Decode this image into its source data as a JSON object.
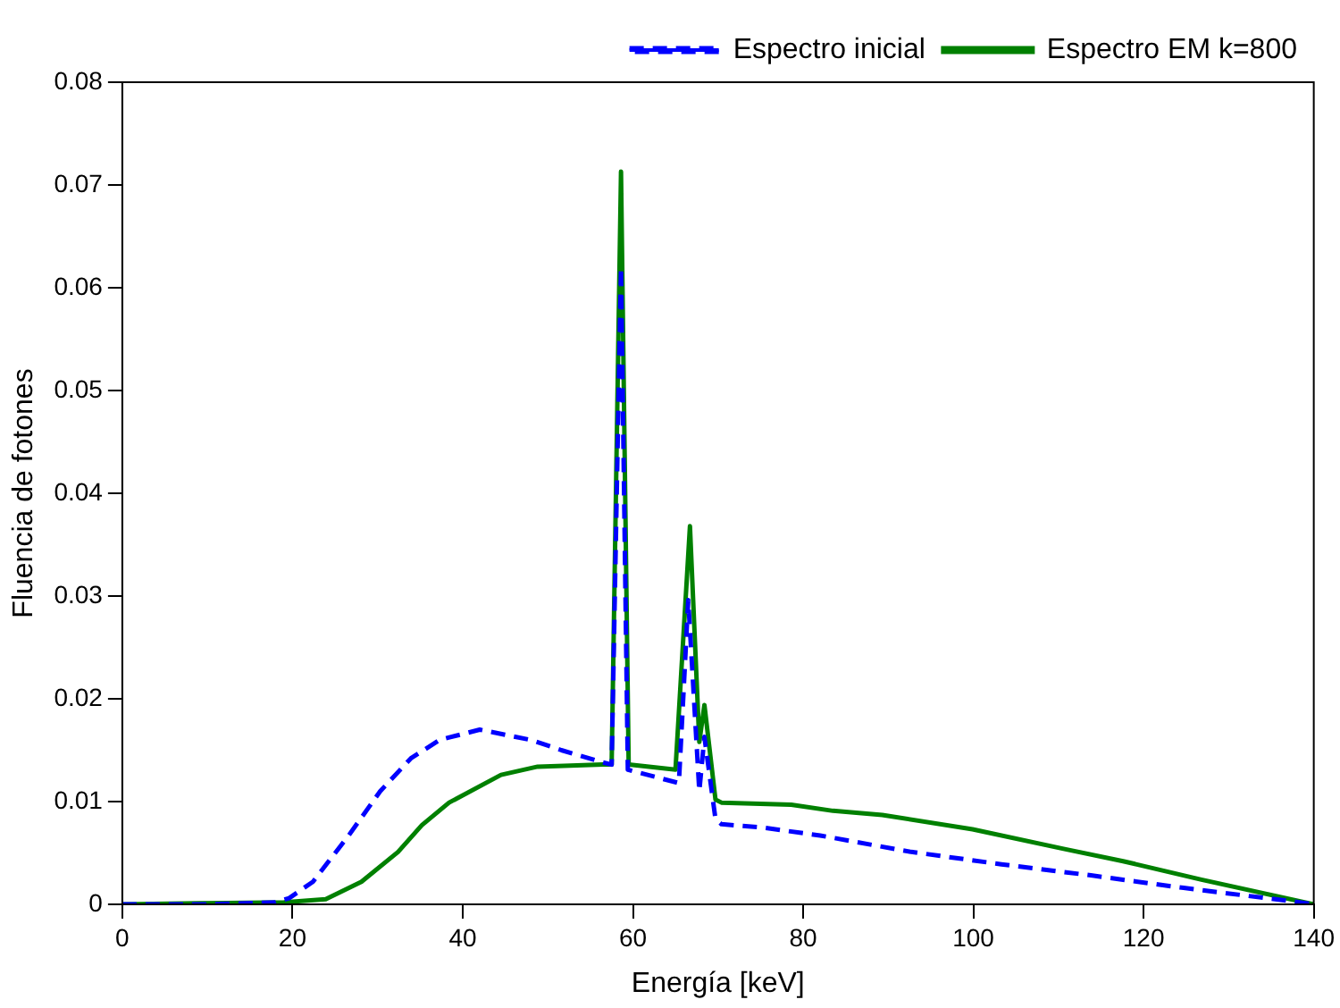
{
  "chart_data": {
    "type": "line",
    "xlabel": "Energía [keV]",
    "ylabel": "Fluencia de fotones",
    "xlim": [
      0,
      140
    ],
    "xticks": [
      0,
      20,
      40,
      60,
      80,
      100,
      120,
      140
    ],
    "ylim": [
      0,
      0.08
    ],
    "yticks": [
      0,
      0.01,
      0.02,
      0.03,
      0.04,
      0.05,
      0.06,
      0.07,
      0.08
    ],
    "grid": false,
    "legend": "top right",
    "marker": "none",
    "series": [
      {
        "name": "Espectro inicial",
        "color": "#0000ff",
        "line_style": "dashed",
        "x": [
          0,
          10,
          18,
          19.6,
          22.4,
          26.6,
          30.3,
          33.9,
          37.3,
          42,
          48,
          51.6,
          56.5,
          57.5,
          58.6,
          59.4,
          65.4,
          66.5,
          67.8,
          68.4,
          69.7,
          70.4,
          75,
          82,
          92.7,
          103.3,
          114,
          124.7,
          137.4,
          140
        ],
        "values": [
          0,
          0,
          0.0002,
          0.0006,
          0.0022,
          0.0067,
          0.011,
          0.0142,
          0.016,
          0.017,
          0.016,
          0.015,
          0.0138,
          0.0136,
          0.062,
          0.0131,
          0.0118,
          0.0296,
          0.011,
          0.0163,
          0.0083,
          0.0078,
          0.0075,
          0.0067,
          0.0051,
          0.0039,
          0.0028,
          0.0016,
          0.0003,
          0
        ]
      },
      {
        "name": "Espectro EM k=800",
        "color": "#008000",
        "line_style": "solid",
        "x": [
          0,
          9,
          19,
          23.9,
          28.1,
          32.4,
          35.2,
          38.4,
          44.5,
          48.8,
          56.5,
          57.5,
          58.6,
          59.5,
          65,
          66.7,
          67.8,
          68.4,
          69.7,
          70.4,
          78.6,
          83.5,
          89.3,
          99.9,
          110.6,
          117.6,
          126.8,
          140
        ],
        "values": [
          0,
          0.0001,
          0.0002,
          0.0005,
          0.0022,
          0.0051,
          0.0077,
          0.0099,
          0.0126,
          0.0134,
          0.0136,
          0.0136,
          0.0713,
          0.0136,
          0.0131,
          0.0368,
          0.0158,
          0.0194,
          0.0102,
          0.0099,
          0.0097,
          0.0091,
          0.0087,
          0.0073,
          0.0054,
          0.0042,
          0.0024,
          0
        ]
      }
    ]
  }
}
